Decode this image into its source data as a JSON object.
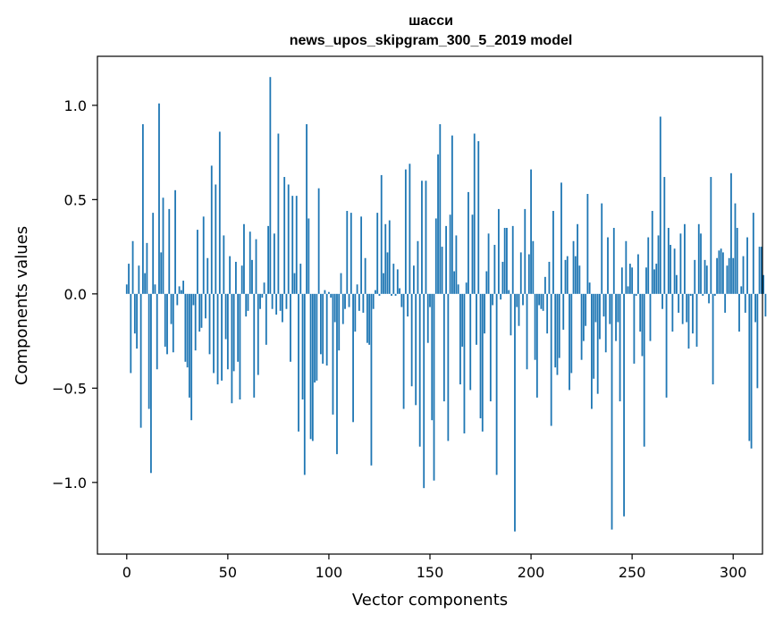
{
  "chart_data": {
    "type": "bar",
    "title": "шасси",
    "subtitle": "news_upos_skipgram_300_5_2019 model",
    "xlabel": "Vector components",
    "ylabel": "Components values",
    "xlim": [
      -14.5,
      314.5
    ],
    "ylim": [
      -1.38,
      1.26
    ],
    "xticks": [
      0,
      50,
      100,
      150,
      200,
      250,
      300
    ],
    "xtick_labels": [
      "0",
      "50",
      "100",
      "150",
      "200",
      "250",
      "300"
    ],
    "yticks": [
      -1.0,
      -0.5,
      0.0,
      0.5,
      1.0
    ],
    "ytick_labels": [
      "−1.0",
      "−0.5",
      "0.0",
      "0.5",
      "1.0"
    ],
    "grid": false,
    "bar_color": "#1f77b4",
    "bar_width": 0.8,
    "values": [
      0.05,
      0.16,
      -0.42,
      0.28,
      -0.21,
      -0.29,
      0.15,
      -0.71,
      0.9,
      0.11,
      0.27,
      -0.61,
      -0.95,
      0.43,
      0.05,
      -0.4,
      1.01,
      0.22,
      0.51,
      -0.28,
      -0.32,
      0.45,
      -0.16,
      -0.31,
      0.55,
      -0.06,
      0.04,
      0.02,
      0.07,
      -0.36,
      -0.39,
      -0.55,
      -0.67,
      -0.06,
      -0.3,
      0.34,
      -0.2,
      -0.18,
      0.41,
      -0.13,
      0.19,
      -0.32,
      0.68,
      -0.42,
      0.58,
      -0.48,
      0.86,
      -0.46,
      0.31,
      -0.24,
      -0.4,
      0.2,
      -0.58,
      -0.41,
      0.17,
      -0.36,
      -0.56,
      0.15,
      0.37,
      -0.12,
      -0.09,
      0.33,
      0.18,
      -0.55,
      0.29,
      -0.43,
      -0.08,
      -0.02,
      0.06,
      -0.27,
      0.36,
      1.15,
      -0.08,
      0.32,
      -0.11,
      0.85,
      -0.09,
      -0.15,
      0.62,
      -0.08,
      0.58,
      -0.36,
      0.52,
      0.11,
      0.52,
      -0.73,
      0.16,
      -0.56,
      -0.96,
      0.9,
      0.4,
      -0.77,
      -0.78,
      -0.47,
      -0.46,
      0.56,
      -0.32,
      -0.37,
      0.02,
      -0.38,
      0.01,
      -0.02,
      -0.64,
      -0.15,
      -0.85,
      -0.3,
      0.11,
      -0.16,
      -0.08,
      0.44,
      -0.07,
      0.43,
      -0.68,
      -0.2,
      0.05,
      -0.09,
      0.41,
      -0.1,
      0.19,
      -0.26,
      -0.27,
      -0.91,
      -0.08,
      0.02,
      0.43,
      -0.01,
      0.63,
      0.11,
      0.37,
      0.22,
      0.39,
      -0.01,
      0.16,
      -0.01,
      0.13,
      0.03,
      -0.07,
      -0.61,
      0.66,
      -0.12,
      0.69,
      -0.49,
      0.15,
      -0.59,
      0.28,
      -0.81,
      0.6,
      -1.03,
      0.6,
      -0.26,
      -0.07,
      -0.67,
      -0.99,
      0.4,
      0.74,
      0.9,
      0.25,
      -0.57,
      0.36,
      -0.78,
      0.42,
      0.84,
      0.12,
      0.31,
      0.05,
      -0.48,
      -0.28,
      -0.74,
      0.06,
      0.54,
      -0.51,
      0.42,
      0.85,
      -0.27,
      0.81,
      -0.66,
      -0.73,
      -0.21,
      0.12,
      0.32,
      -0.57,
      -0.06,
      0.26,
      -0.96,
      0.45,
      -0.03,
      0.17,
      0.35,
      0.35,
      0.02,
      -0.22,
      0.36,
      -1.26,
      -0.07,
      -0.17,
      0.22,
      -0.06,
      0.45,
      -0.4,
      0.21,
      0.66,
      0.28,
      -0.35,
      -0.55,
      -0.06,
      -0.08,
      -0.09,
      0.09,
      -0.21,
      0.17,
      -0.7,
      0.44,
      -0.39,
      -0.43,
      -0.34,
      0.59,
      -0.19,
      0.18,
      0.2,
      -0.51,
      -0.42,
      0.28,
      0.2,
      0.37,
      0.15,
      -0.35,
      -0.25,
      -0.17,
      0.53,
      0.06,
      -0.61,
      -0.45,
      -0.15,
      -0.53,
      -0.24,
      0.48,
      -0.12,
      -0.31,
      0.3,
      -0.16,
      -1.25,
      0.35,
      -0.25,
      -0.15,
      -0.57,
      0.14,
      -1.18,
      0.28,
      0.04,
      0.16,
      0.14,
      -0.37,
      -0.01,
      0.21,
      -0.2,
      -0.33,
      -0.81,
      0.14,
      0.3,
      -0.25,
      0.44,
      0.13,
      0.16,
      0.31,
      0.94,
      -0.08,
      0.62,
      -0.55,
      0.35,
      0.26,
      -0.2,
      0.24,
      0.1,
      -0.1,
      0.32,
      -0.16,
      0.37,
      -0.15,
      -0.29,
      -0.01,
      -0.21,
      0.18,
      -0.28,
      0.37,
      0.32,
      -0.01,
      0.18,
      0.15,
      -0.05,
      0.62,
      -0.48,
      -0.01,
      0.19,
      0.23,
      0.24,
      0.22,
      -0.1,
      0.15,
      0.19,
      0.64,
      0.19,
      0.48,
      0.35,
      -0.2,
      0.04,
      0.2,
      -0.1,
      0.3,
      -0.78,
      -0.82,
      0.43,
      -0.15,
      -0.5,
      0.25,
      0.25,
      0.1,
      -0.12
    ]
  }
}
